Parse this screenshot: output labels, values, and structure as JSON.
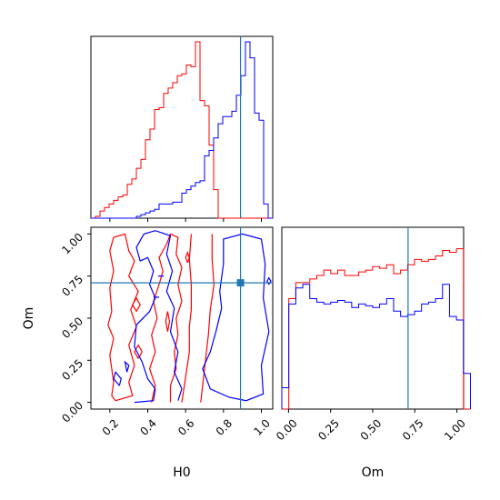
{
  "chart_data": {
    "type": "corner",
    "colors": {
      "series_a": "#ff0000",
      "series_b": "#0000ff",
      "truth": "#1f77b4"
    },
    "truth": {
      "H0": 0.89,
      "Om": 0.71
    },
    "ranges": {
      "H0": [
        0.1,
        1.06
      ],
      "Om": [
        -0.04,
        1.04
      ]
    },
    "axis_labels": {
      "H0": "H0",
      "Om": "Om"
    },
    "tick_labels": {
      "H0": [
        "0.2",
        "0.4",
        "0.6",
        "0.8",
        "1.0"
      ],
      "Om": [
        "0.00",
        "0.25",
        "0.50",
        "0.75",
        "1.00"
      ]
    },
    "H0_hist": {
      "bin_start": 0.1,
      "bin_width": 0.024,
      "series_a": [
        0,
        0.01,
        0.04,
        0.06,
        0.08,
        0.1,
        0.12,
        0.13,
        0.19,
        0.22,
        0.28,
        0.33,
        0.44,
        0.5,
        0.61,
        0.62,
        0.7,
        0.73,
        0.76,
        0.8,
        0.81,
        0.86,
        0.85,
        0.99,
        0.66,
        0.63,
        0.41,
        0.16,
        0,
        0,
        0,
        0,
        0,
        0,
        0,
        0,
        0,
        0,
        0,
        0
      ],
      "series_b": [
        0,
        0,
        0,
        0,
        0,
        0,
        0,
        0,
        0,
        0,
        0.01,
        0.02,
        0.03,
        0.04,
        0.05,
        0.08,
        0.08,
        0.08,
        0.09,
        0.09,
        0.14,
        0.16,
        0.18,
        0.2,
        0.21,
        0.35,
        0.38,
        0.45,
        0.53,
        0.57,
        0.57,
        0.6,
        0.69,
        0.8,
        0.99,
        0.9,
        0.59,
        0.55,
        0.08,
        0
      ]
    },
    "Om_hist": {
      "bin_start": -0.04,
      "bin_width": 0.0415,
      "series_a": [
        0,
        0.62,
        0.71,
        0.71,
        0.73,
        0.75,
        0.78,
        0.76,
        0.78,
        0.75,
        0.75,
        0.77,
        0.78,
        0.8,
        0.79,
        0.81,
        0.76,
        0.78,
        0.81,
        0.84,
        0.83,
        0.84,
        0.86,
        0.89,
        0.88,
        0.9,
        0.0
      ],
      "series_b": [
        0.12,
        0.59,
        0.68,
        0.7,
        0.62,
        0.6,
        0.59,
        0.6,
        0.61,
        0.6,
        0.57,
        0.59,
        0.58,
        0.57,
        0.59,
        0.62,
        0.55,
        0.52,
        0.53,
        0.55,
        0.59,
        0.6,
        0.62,
        0.7,
        0.52,
        0.5,
        0.2
      ]
    },
    "contours": {
      "series_a": [
        [
          [
            0.23,
            0.01
          ],
          [
            0.21,
            0.04
          ],
          [
            0.22,
            0.12
          ],
          [
            0.2,
            0.28
          ],
          [
            0.22,
            0.38
          ],
          [
            0.19,
            0.46
          ],
          [
            0.21,
            0.54
          ],
          [
            0.2,
            0.68
          ],
          [
            0.22,
            0.78
          ],
          [
            0.2,
            0.9
          ],
          [
            0.22,
            0.98
          ],
          [
            0.28,
            1.0
          ],
          [
            0.3,
            0.9
          ],
          [
            0.33,
            0.84
          ],
          [
            0.3,
            0.75
          ],
          [
            0.35,
            0.66
          ],
          [
            0.31,
            0.55
          ],
          [
            0.34,
            0.45
          ],
          [
            0.3,
            0.34
          ],
          [
            0.33,
            0.22
          ],
          [
            0.3,
            0.12
          ],
          [
            0.32,
            0.04
          ],
          [
            0.23,
            0.01
          ]
        ],
        [
          [
            0.42,
            0.0
          ],
          [
            0.44,
            0.1
          ],
          [
            0.41,
            0.2
          ],
          [
            0.44,
            0.3
          ],
          [
            0.42,
            0.4
          ],
          [
            0.45,
            0.5
          ],
          [
            0.43,
            0.6
          ],
          [
            0.46,
            0.7
          ],
          [
            0.48,
            0.78
          ],
          [
            0.46,
            0.86
          ],
          [
            0.5,
            0.94
          ],
          [
            0.52,
            1.0
          ],
          [
            0.56,
            0.98
          ],
          [
            0.55,
            0.88
          ],
          [
            0.58,
            0.8
          ],
          [
            0.56,
            0.7
          ],
          [
            0.58,
            0.6
          ],
          [
            0.55,
            0.5
          ],
          [
            0.56,
            0.4
          ],
          [
            0.54,
            0.3
          ],
          [
            0.55,
            0.2
          ],
          [
            0.52,
            0.1
          ],
          [
            0.52,
            0.0
          ]
        ],
        [
          [
            0.58,
            0.0
          ],
          [
            0.6,
            0.15
          ],
          [
            0.62,
            0.3
          ],
          [
            0.62,
            0.45
          ],
          [
            0.63,
            0.55
          ],
          [
            0.63,
            0.7
          ],
          [
            0.62,
            0.85
          ],
          [
            0.63,
            1.0
          ]
        ],
        [
          [
            0.68,
            0.0
          ],
          [
            0.7,
            0.2
          ],
          [
            0.72,
            0.4
          ],
          [
            0.73,
            0.55
          ],
          [
            0.75,
            0.7
          ],
          [
            0.74,
            0.85
          ],
          [
            0.74,
            1.0
          ]
        ],
        [
          [
            0.35,
            0.26
          ],
          [
            0.37,
            0.3
          ],
          [
            0.35,
            0.34
          ],
          [
            0.33,
            0.3
          ],
          [
            0.35,
            0.26
          ]
        ],
        [
          [
            0.34,
            0.54
          ],
          [
            0.36,
            0.58
          ],
          [
            0.34,
            0.62
          ],
          [
            0.32,
            0.58
          ],
          [
            0.34,
            0.54
          ]
        ],
        [
          [
            0.505,
            0.42
          ],
          [
            0.515,
            0.48
          ],
          [
            0.505,
            0.54
          ],
          [
            0.495,
            0.48
          ],
          [
            0.505,
            0.42
          ]
        ],
        [
          [
            0.61,
            0.83
          ],
          [
            0.62,
            0.86
          ],
          [
            0.61,
            0.89
          ],
          [
            0.6,
            0.86
          ],
          [
            0.61,
            0.83
          ]
        ]
      ],
      "series_b": [
        [
          [
            0.83,
            0.03
          ],
          [
            0.92,
            0.01
          ],
          [
            1.01,
            0.05
          ],
          [
            1.0,
            0.22
          ],
          [
            1.04,
            0.42
          ],
          [
            1.01,
            0.62
          ],
          [
            1.02,
            0.82
          ],
          [
            1.0,
            0.97
          ],
          [
            0.9,
            1.0
          ],
          [
            0.8,
            0.97
          ],
          [
            0.8,
            0.82
          ],
          [
            0.78,
            0.66
          ],
          [
            0.79,
            0.56
          ],
          [
            0.76,
            0.42
          ],
          [
            0.73,
            0.3
          ],
          [
            0.69,
            0.2
          ],
          [
            0.73,
            0.08
          ],
          [
            0.83,
            0.03
          ]
        ],
        [
          [
            0.33,
            0.0
          ],
          [
            0.43,
            0.01
          ],
          [
            0.44,
            0.08
          ],
          [
            0.4,
            0.14
          ],
          [
            0.37,
            0.24
          ],
          [
            0.33,
            0.33
          ],
          [
            0.34,
            0.46
          ],
          [
            0.41,
            0.54
          ],
          [
            0.44,
            0.62
          ],
          [
            0.41,
            0.7
          ],
          [
            0.43,
            0.78
          ],
          [
            0.4,
            0.86
          ],
          [
            0.36,
            0.84
          ],
          [
            0.34,
            0.92
          ],
          [
            0.38,
            1.0
          ],
          [
            0.44,
            1.02
          ],
          [
            0.52,
            0.99
          ],
          [
            0.5,
            0.88
          ],
          [
            0.53,
            0.78
          ],
          [
            0.5,
            0.66
          ],
          [
            0.54,
            0.56
          ],
          [
            0.52,
            0.42
          ],
          [
            0.56,
            0.3
          ],
          [
            0.54,
            0.18
          ],
          [
            0.58,
            0.08
          ],
          [
            0.56,
            0.01
          ]
        ],
        [
          [
            0.25,
            0.1
          ],
          [
            0.26,
            0.14
          ],
          [
            0.23,
            0.18
          ],
          [
            0.22,
            0.14
          ],
          [
            0.25,
            0.1
          ]
        ],
        [
          [
            0.29,
            0.18
          ],
          [
            0.3,
            0.22
          ],
          [
            0.28,
            0.24
          ],
          [
            0.29,
            0.18
          ]
        ],
        [
          [
            0.455,
            0.75
          ],
          [
            0.485,
            0.75
          ]
        ],
        [
          [
            0.43,
            0.625
          ],
          [
            0.46,
            0.625
          ]
        ],
        [
          [
            1.04,
            0.7
          ],
          [
            1.05,
            0.72
          ],
          [
            1.04,
            0.74
          ],
          [
            1.03,
            0.72
          ],
          [
            1.04,
            0.7
          ]
        ]
      ]
    }
  }
}
